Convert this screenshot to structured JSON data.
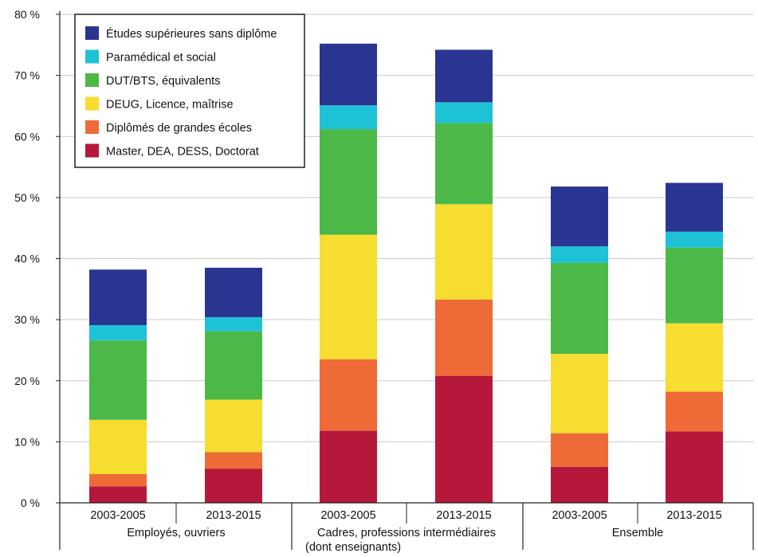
{
  "chart_data": {
    "type": "bar",
    "stacked": true,
    "y_tick_labels": [
      "0 %",
      "10 %",
      "20 %",
      "30 %",
      "40 %",
      "50 %",
      "60 %",
      "70 %",
      "80 %"
    ],
    "ylim": [
      0,
      80
    ],
    "grid": true,
    "legend_position": "top-left",
    "groups": [
      {
        "label": "Employés, ouvriers",
        "label_lines": [
          "Employés, ouvriers"
        ]
      },
      {
        "label": "Cadres, professions intermédiaires (dont enseignants)",
        "label_lines": [
          "Cadres, professions intermédiaires",
          "(dont enseignants)"
        ]
      },
      {
        "label": "Ensemble",
        "label_lines": [
          "Ensemble"
        ]
      }
    ],
    "categories": [
      "2003-2005",
      "2013-2015",
      "2003-2005",
      "2013-2015",
      "2003-2005",
      "2013-2015"
    ],
    "category_group": [
      0,
      0,
      1,
      1,
      2,
      2
    ],
    "series": [
      {
        "name": "Master, DEA, DESS, Doctorat",
        "color": "#b5183a",
        "values": [
          2.7,
          5.6,
          11.8,
          20.8,
          5.9,
          11.7
        ]
      },
      {
        "name": "Diplômés de grandes écoles",
        "color": "#ee6a36",
        "values": [
          2.0,
          2.7,
          11.7,
          12.5,
          5.5,
          6.5
        ]
      },
      {
        "name": "DEUG, Licence, maîtrise",
        "color": "#f7dd2f",
        "values": [
          8.9,
          8.6,
          20.4,
          15.6,
          13.0,
          11.2
        ]
      },
      {
        "name": "DUT/BTS, équivalents",
        "color": "#4cb848",
        "values": [
          13.0,
          11.2,
          17.3,
          13.3,
          14.9,
          12.4
        ]
      },
      {
        "name": "Paramédical et social",
        "color": "#1ec2d6",
        "values": [
          2.5,
          2.3,
          3.9,
          3.4,
          2.7,
          2.6
        ]
      },
      {
        "name": "Études supérieures sans diplôme",
        "color": "#2a3591",
        "values": [
          9.1,
          8.1,
          10.1,
          8.6,
          9.8,
          8.0
        ]
      }
    ]
  }
}
